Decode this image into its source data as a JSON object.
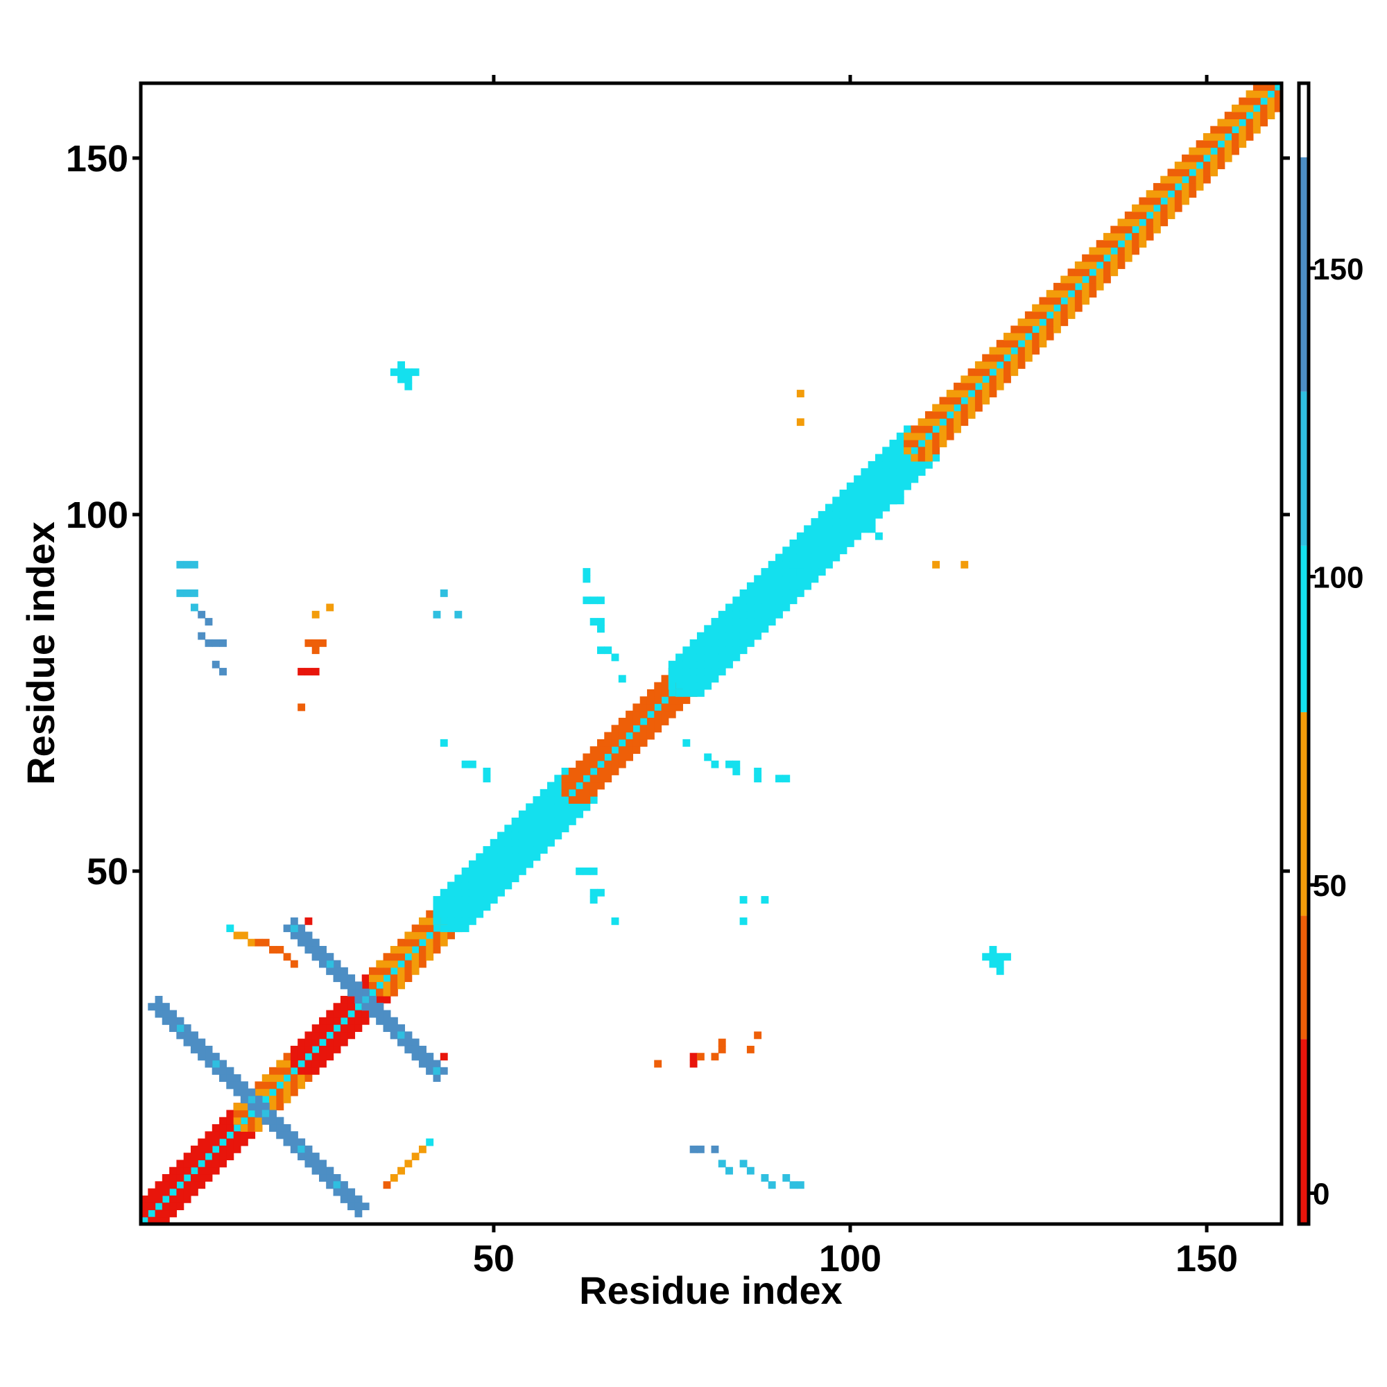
{
  "chart_data": {
    "type": "heatmap",
    "title": "",
    "xlabel": "Residue index",
    "ylabel": "Residue index",
    "xlim": [
      1,
      160
    ],
    "ylim": [
      1,
      160
    ],
    "x_ticks": [
      50,
      100,
      150
    ],
    "y_ticks": [
      50,
      100,
      150
    ],
    "colorbar": {
      "range": [
        -5,
        180
      ],
      "ticks": [
        0,
        50,
        100,
        150
      ],
      "bands": [
        {
          "from": -5,
          "to": 25,
          "color": "#e8150b"
        },
        {
          "from": 25,
          "to": 45,
          "color": "#ee5f08"
        },
        {
          "from": 45,
          "to": 78,
          "color": "#f39c0a"
        },
        {
          "from": 78,
          "to": 105,
          "color": "#14e0ee"
        },
        {
          "from": 105,
          "to": 130,
          "color": "#2fbfe0"
        },
        {
          "from": 130,
          "to": 168,
          "color": "#4d8ec4"
        },
        {
          "from": 168,
          "to": 180,
          "color": "#ffffff"
        }
      ]
    },
    "diagonal": {
      "from": 1,
      "to": 160,
      "value": 90
    },
    "near_diagonal_segments": [
      {
        "from": 1,
        "to": 14,
        "value": 10
      },
      {
        "from": 14,
        "to": 22,
        "value": 35
      },
      {
        "from": 22,
        "to": 33,
        "value": 8
      },
      {
        "from": 33,
        "to": 42,
        "value": 40
      },
      {
        "from": 42,
        "to": 60,
        "value": 95
      },
      {
        "from": 60,
        "to": 75,
        "value": 30
      },
      {
        "from": 75,
        "to": 92,
        "value": 95
      },
      {
        "from": 92,
        "to": 108,
        "value": 95
      },
      {
        "from": 108,
        "to": 160,
        "value": 38
      }
    ],
    "beta_strands": [
      {
        "x": [
          3,
          31
        ],
        "y": [
          31,
          3
        ],
        "value": 140
      },
      {
        "x": [
          22,
          42
        ],
        "y": [
          42,
          22
        ],
        "value": 140
      }
    ],
    "contact_points": [
      {
        "x": 6,
        "y": 93,
        "value": 115
      },
      {
        "x": 7,
        "y": 93,
        "value": 115
      },
      {
        "x": 8,
        "y": 93,
        "value": 115
      },
      {
        "x": 6,
        "y": 89,
        "value": 115
      },
      {
        "x": 7,
        "y": 89,
        "value": 115
      },
      {
        "x": 8,
        "y": 89,
        "value": 115
      },
      {
        "x": 8,
        "y": 87,
        "value": 115
      },
      {
        "x": 9,
        "y": 86,
        "value": 130
      },
      {
        "x": 10,
        "y": 85,
        "value": 130
      },
      {
        "x": 9,
        "y": 83,
        "value": 140
      },
      {
        "x": 10,
        "y": 82,
        "value": 140
      },
      {
        "x": 11,
        "y": 82,
        "value": 140
      },
      {
        "x": 12,
        "y": 82,
        "value": 140
      },
      {
        "x": 11,
        "y": 79,
        "value": 140
      },
      {
        "x": 12,
        "y": 78,
        "value": 140
      },
      {
        "x": 25,
        "y": 86,
        "value": 45
      },
      {
        "x": 27,
        "y": 87,
        "value": 45
      },
      {
        "x": 24,
        "y": 82,
        "value": 40
      },
      {
        "x": 25,
        "y": 82,
        "value": 40
      },
      {
        "x": 26,
        "y": 82,
        "value": 40
      },
      {
        "x": 25,
        "y": 81,
        "value": 40
      },
      {
        "x": 23,
        "y": 78,
        "value": 15
      },
      {
        "x": 24,
        "y": 78,
        "value": 15
      },
      {
        "x": 25,
        "y": 78,
        "value": 15
      },
      {
        "x": 23,
        "y": 73,
        "value": 40
      },
      {
        "x": 43,
        "y": 89,
        "value": 115
      },
      {
        "x": 45,
        "y": 86,
        "value": 115
      },
      {
        "x": 42,
        "y": 86,
        "value": 115
      },
      {
        "x": 43,
        "y": 68,
        "value": 95
      },
      {
        "x": 46,
        "y": 65,
        "value": 95
      },
      {
        "x": 47,
        "y": 65,
        "value": 95
      },
      {
        "x": 49,
        "y": 64,
        "value": 95
      },
      {
        "x": 49,
        "y": 63,
        "value": 95
      },
      {
        "x": 37,
        "y": 120,
        "value": 95
      },
      {
        "x": 38,
        "y": 120,
        "value": 95
      },
      {
        "x": 37,
        "y": 119,
        "value": 95
      },
      {
        "x": 38,
        "y": 119,
        "value": 95
      },
      {
        "x": 36,
        "y": 120,
        "value": 95
      },
      {
        "x": 39,
        "y": 120,
        "value": 95
      },
      {
        "x": 37,
        "y": 121,
        "value": 95
      },
      {
        "x": 38,
        "y": 118,
        "value": 95
      },
      {
        "x": 93,
        "y": 117,
        "value": 45
      },
      {
        "x": 93,
        "y": 113,
        "value": 45
      },
      {
        "x": 63,
        "y": 92,
        "value": 95
      },
      {
        "x": 63,
        "y": 91,
        "value": 95
      },
      {
        "x": 63,
        "y": 88,
        "value": 95
      },
      {
        "x": 64,
        "y": 88,
        "value": 95
      },
      {
        "x": 65,
        "y": 88,
        "value": 95
      },
      {
        "x": 64,
        "y": 85,
        "value": 95
      },
      {
        "x": 65,
        "y": 85,
        "value": 95
      },
      {
        "x": 65,
        "y": 84,
        "value": 95
      },
      {
        "x": 65,
        "y": 81,
        "value": 95
      },
      {
        "x": 66,
        "y": 81,
        "value": 95
      },
      {
        "x": 67,
        "y": 80,
        "value": 95
      },
      {
        "x": 68,
        "y": 77,
        "value": 95
      },
      {
        "x": 77,
        "y": 68,
        "value": 95
      },
      {
        "x": 80,
        "y": 66,
        "value": 95
      },
      {
        "x": 81,
        "y": 65,
        "value": 95
      },
      {
        "x": 83,
        "y": 65,
        "value": 95
      },
      {
        "x": 84,
        "y": 64,
        "value": 95
      },
      {
        "x": 84,
        "y": 65,
        "value": 95
      },
      {
        "x": 87,
        "y": 64,
        "value": 95
      },
      {
        "x": 87,
        "y": 63,
        "value": 95
      },
      {
        "x": 90,
        "y": 63,
        "value": 95
      },
      {
        "x": 91,
        "y": 63,
        "value": 95
      },
      {
        "x": 62,
        "y": 50,
        "value": 95
      },
      {
        "x": 63,
        "y": 50,
        "value": 95
      },
      {
        "x": 64,
        "y": 50,
        "value": 95
      },
      {
        "x": 64,
        "y": 47,
        "value": 95
      },
      {
        "x": 65,
        "y": 47,
        "value": 95
      },
      {
        "x": 64,
        "y": 46,
        "value": 95
      },
      {
        "x": 67,
        "y": 43,
        "value": 95
      },
      {
        "x": 85,
        "y": 46,
        "value": 95
      },
      {
        "x": 88,
        "y": 46,
        "value": 95
      },
      {
        "x": 85,
        "y": 43,
        "value": 95
      },
      {
        "x": 112,
        "y": 93,
        "value": 45
      },
      {
        "x": 116,
        "y": 93,
        "value": 45
      },
      {
        "x": 106,
        "y": 102,
        "value": 95
      },
      {
        "x": 107,
        "y": 102,
        "value": 95
      },
      {
        "x": 103,
        "y": 98,
        "value": 95
      },
      {
        "x": 104,
        "y": 97,
        "value": 95
      },
      {
        "x": 120,
        "y": 38,
        "value": 95
      },
      {
        "x": 121,
        "y": 38,
        "value": 95
      },
      {
        "x": 120,
        "y": 37,
        "value": 95
      },
      {
        "x": 121,
        "y": 37,
        "value": 95
      },
      {
        "x": 119,
        "y": 38,
        "value": 95
      },
      {
        "x": 122,
        "y": 38,
        "value": 95
      },
      {
        "x": 120,
        "y": 39,
        "value": 95
      },
      {
        "x": 121,
        "y": 36,
        "value": 95
      },
      {
        "x": 73,
        "y": 23,
        "value": 40
      },
      {
        "x": 78,
        "y": 23,
        "value": 15
      },
      {
        "x": 78,
        "y": 24,
        "value": 15
      },
      {
        "x": 79,
        "y": 24,
        "value": 40
      },
      {
        "x": 81,
        "y": 24,
        "value": 40
      },
      {
        "x": 82,
        "y": 25,
        "value": 40
      },
      {
        "x": 82,
        "y": 26,
        "value": 40
      },
      {
        "x": 86,
        "y": 25,
        "value": 40
      },
      {
        "x": 87,
        "y": 27,
        "value": 40
      },
      {
        "x": 78,
        "y": 11,
        "value": 140
      },
      {
        "x": 79,
        "y": 11,
        "value": 140
      },
      {
        "x": 81,
        "y": 11,
        "value": 140
      },
      {
        "x": 82,
        "y": 9,
        "value": 120
      },
      {
        "x": 83,
        "y": 8,
        "value": 120
      },
      {
        "x": 85,
        "y": 9,
        "value": 120
      },
      {
        "x": 86,
        "y": 8,
        "value": 120
      },
      {
        "x": 88,
        "y": 7,
        "value": 120
      },
      {
        "x": 89,
        "y": 6,
        "value": 120
      },
      {
        "x": 91,
        "y": 7,
        "value": 120
      },
      {
        "x": 92,
        "y": 6,
        "value": 120
      },
      {
        "x": 93,
        "y": 6,
        "value": 120
      },
      {
        "x": 14,
        "y": 41,
        "value": 45
      },
      {
        "x": 15,
        "y": 41,
        "value": 45
      },
      {
        "x": 16,
        "y": 40,
        "value": 45
      },
      {
        "x": 17,
        "y": 40,
        "value": 40
      },
      {
        "x": 18,
        "y": 40,
        "value": 40
      },
      {
        "x": 19,
        "y": 39,
        "value": 40
      },
      {
        "x": 20,
        "y": 39,
        "value": 40
      },
      {
        "x": 21,
        "y": 38,
        "value": 40
      },
      {
        "x": 22,
        "y": 37,
        "value": 40
      },
      {
        "x": 13,
        "y": 42,
        "value": 95
      },
      {
        "x": 35,
        "y": 6,
        "value": 40
      },
      {
        "x": 36,
        "y": 7,
        "value": 45
      },
      {
        "x": 37,
        "y": 8,
        "value": 45
      },
      {
        "x": 38,
        "y": 9,
        "value": 45
      },
      {
        "x": 39,
        "y": 10,
        "value": 45
      },
      {
        "x": 40,
        "y": 11,
        "value": 45
      },
      {
        "x": 41,
        "y": 12,
        "value": 95
      },
      {
        "x": 43,
        "y": 24,
        "value": 8
      },
      {
        "x": 24,
        "y": 43,
        "value": 8
      }
    ]
  }
}
